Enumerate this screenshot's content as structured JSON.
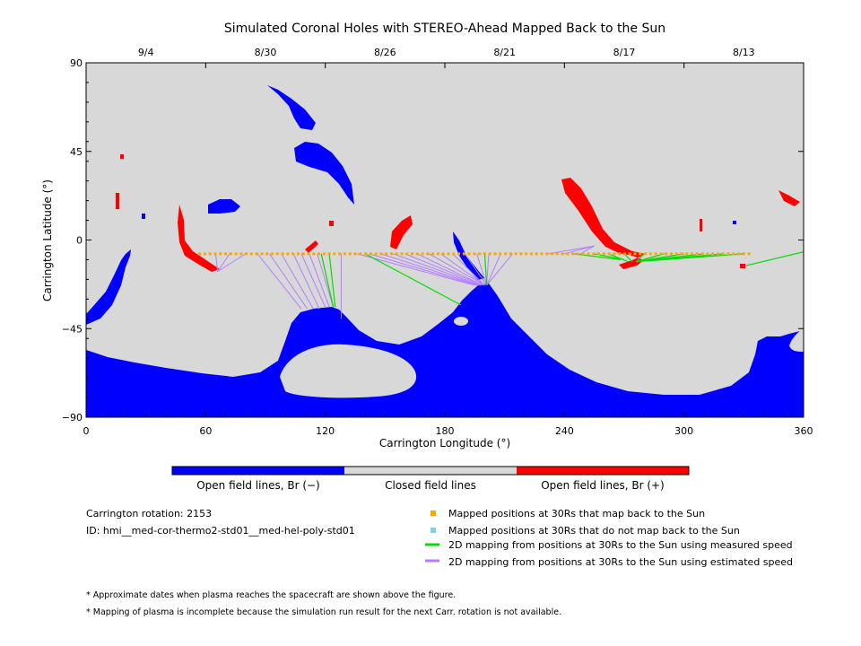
{
  "chart_data": {
    "type": "map",
    "title": "Simulated Coronal Holes with STEREO-Ahead Mapped Back to the Sun",
    "xlabel": "Carrington Longitude (°)",
    "ylabel": "Carrington Latitude (°)",
    "xlim": [
      0,
      360
    ],
    "ylim": [
      -90,
      90
    ],
    "xticks": [
      "0",
      "60",
      "120",
      "180",
      "240",
      "300",
      "360"
    ],
    "yticks": [
      "90",
      "45",
      "0",
      "-45",
      "-90"
    ],
    "top_dates": [
      {
        "label": "9/4",
        "lon": 30
      },
      {
        "label": "8/30",
        "lon": 90
      },
      {
        "label": "8/26",
        "lon": 150
      },
      {
        "label": "8/21",
        "lon": 210
      },
      {
        "label": "8/17",
        "lon": 270
      },
      {
        "label": "8/13",
        "lon": 330
      }
    ],
    "background_color": "#d8d8d8",
    "colors": {
      "open_negative": "#0000ff",
      "closed": "#d8d8d8",
      "open_positive": "#ff0000",
      "mapped": "#ffa500",
      "not_mapped": "#87ceeb",
      "measured": "#00dd00",
      "estimated": "#b27fff"
    },
    "colorbar": {
      "labels": [
        "Open field lines, Br (−)",
        "Closed field lines",
        "Open field lines, Br (+)"
      ]
    },
    "footpoint_lat": -7,
    "footpoint_range": [
      57,
      335
    ],
    "estimated_connections": [
      {
        "from": [
          65,
          -7
        ],
        "to": [
          66,
          -16
        ]
      },
      {
        "from": [
          72,
          -7
        ],
        "to": [
          66,
          -16
        ]
      },
      {
        "from": [
          80,
          -7
        ],
        "to": [
          66,
          -16
        ]
      },
      {
        "from": [
          86,
          -7
        ],
        "to": [
          108,
          -35
        ]
      },
      {
        "from": [
          92,
          -7
        ],
        "to": [
          111,
          -35
        ]
      },
      {
        "from": [
          98,
          -7
        ],
        "to": [
          114,
          -35
        ]
      },
      {
        "from": [
          104,
          -7
        ],
        "to": [
          117,
          -35
        ]
      },
      {
        "from": [
          108,
          -7
        ],
        "to": [
          120,
          -34
        ]
      },
      {
        "from": [
          112,
          -7
        ],
        "to": [
          122,
          -34
        ]
      },
      {
        "from": [
          116,
          -7
        ],
        "to": [
          124,
          -34
        ]
      },
      {
        "from": [
          128,
          -7
        ],
        "to": [
          128,
          -40
        ]
      },
      {
        "from": [
          136,
          -7
        ],
        "to": [
          195,
          -23
        ]
      },
      {
        "from": [
          142,
          -7
        ],
        "to": [
          196,
          -23
        ]
      },
      {
        "from": [
          148,
          -7
        ],
        "to": [
          197,
          -23
        ]
      },
      {
        "from": [
          154,
          -7
        ],
        "to": [
          198,
          -23
        ]
      },
      {
        "from": [
          160,
          -7
        ],
        "to": [
          199,
          -23
        ]
      },
      {
        "from": [
          166,
          -7
        ],
        "to": [
          199,
          -23
        ]
      },
      {
        "from": [
          172,
          -7
        ],
        "to": [
          200,
          -23
        ]
      },
      {
        "from": [
          178,
          -7
        ],
        "to": [
          200,
          -23
        ]
      },
      {
        "from": [
          184,
          -7
        ],
        "to": [
          200,
          -23
        ]
      },
      {
        "from": [
          190,
          -7
        ],
        "to": [
          201,
          -23
        ]
      },
      {
        "from": [
          196,
          -7
        ],
        "to": [
          201,
          -23
        ]
      },
      {
        "from": [
          202,
          -7
        ],
        "to": [
          201,
          -23
        ]
      },
      {
        "from": [
          208,
          -7
        ],
        "to": [
          201,
          -23
        ]
      },
      {
        "from": [
          214,
          -7
        ],
        "to": [
          201,
          -23
        ]
      },
      {
        "from": [
          232,
          -7
        ],
        "to": [
          255,
          -3
        ]
      },
      {
        "from": [
          240,
          -7
        ],
        "to": [
          255,
          -3
        ]
      },
      {
        "from": [
          248,
          -7
        ],
        "to": [
          255,
          -3
        ]
      }
    ],
    "measured_connections": [
      {
        "from": [
          118,
          -7
        ],
        "to": [
          124,
          -34
        ]
      },
      {
        "from": [
          122,
          -7
        ],
        "to": [
          125,
          -34
        ]
      },
      {
        "from": [
          140,
          -7
        ],
        "to": [
          188,
          -33
        ]
      },
      {
        "from": [
          200,
          -7
        ],
        "to": [
          201,
          -23
        ]
      },
      {
        "from": [
          245,
          -7
        ],
        "to": [
          268,
          -10
        ]
      },
      {
        "from": [
          255,
          -7
        ],
        "to": [
          270,
          -10
        ]
      },
      {
        "from": [
          262,
          -7
        ],
        "to": [
          272,
          -11
        ]
      },
      {
        "from": [
          270,
          -7
        ],
        "to": [
          274,
          -11
        ]
      },
      {
        "from": [
          280,
          -7
        ],
        "to": [
          276,
          -11
        ]
      },
      {
        "from": [
          290,
          -7
        ],
        "to": [
          276,
          -11
        ]
      },
      {
        "from": [
          300,
          -7
        ],
        "to": [
          276,
          -11
        ]
      },
      {
        "from": [
          310,
          -7
        ],
        "to": [
          276,
          -11
        ]
      },
      {
        "from": [
          320,
          -7
        ],
        "to": [
          276,
          -11
        ]
      },
      {
        "from": [
          330,
          -7
        ],
        "to": [
          276,
          -11
        ]
      },
      {
        "from": [
          360,
          -6
        ],
        "to": [
          331,
          -13
        ]
      }
    ],
    "info": {
      "rotation": "Carrington rotation: 2153",
      "id": "ID: hmi__med-cor-thermo2-std01__med-hel-poly-std01"
    },
    "legend": [
      {
        "label": "Mapped positions at 30Rs that map back to the Sun",
        "kind": "square",
        "color": "#ffa500"
      },
      {
        "label": "Mapped positions at 30Rs that do not map back to the Sun",
        "kind": "square",
        "color": "#87ceeb"
      },
      {
        "label": "2D mapping from positions at 30Rs to the Sun using measured speed",
        "kind": "line",
        "color": "#00dd00"
      },
      {
        "label": "2D mapping from positions at 30Rs to the Sun using estimated speed",
        "kind": "line",
        "color": "#b27fff"
      }
    ],
    "notes": [
      "* Approximate dates when plasma reaches the spacecraft are shown above the figure.",
      "* Mapping of plasma is incomplete because the simulation run result for the next Carr. rotation is not available."
    ]
  }
}
